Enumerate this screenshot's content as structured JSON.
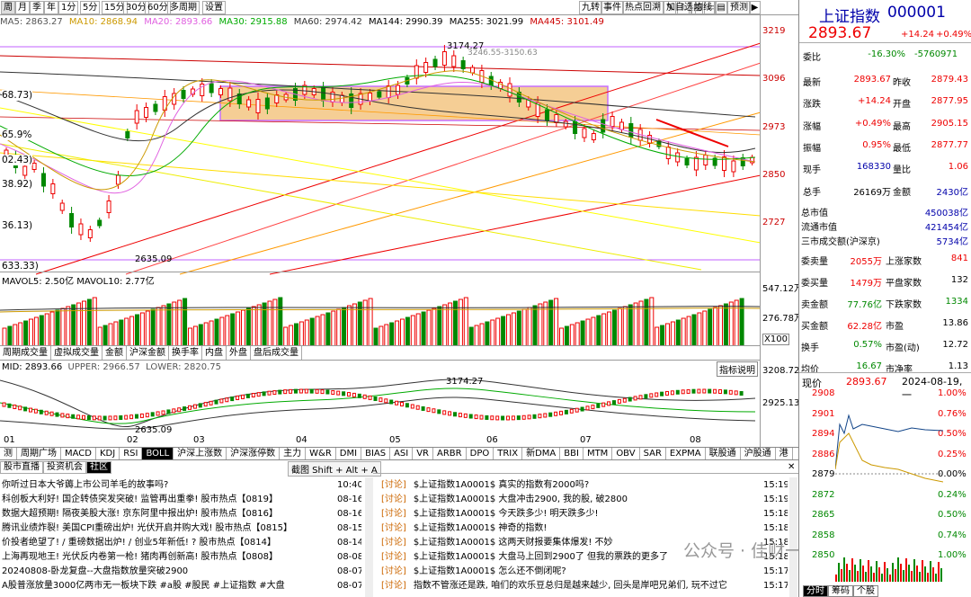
{
  "toolbar": {
    "periods": [
      "周",
      "月",
      "季",
      "年",
      "1分",
      "5分",
      "15分",
      "30分",
      "60分",
      "多周期",
      "设置"
    ],
    "active": "周",
    "right": [
      "九转",
      "事件",
      "热点回溯",
      "",
      "",
      "",
      "",
      "",
      "加自选",
      "均线",
      "",
      "预测",
      ""
    ]
  },
  "ma": {
    "ma5": "MA5: 2863.27",
    "ma10": "MA10: 2868.94",
    "ma20": "MA20: 2893.66",
    "ma30": "MA30: 2915.88",
    "ma60": "MA60: 2974.42",
    "ma144": "MA144: 2990.39",
    "ma255": "MA255: 3021.99",
    "ma445": "MA445: 3101.49"
  },
  "colors": {
    "ma5": "#555",
    "ma10": "#d4a300",
    "ma20": "#e060e0",
    "ma30": "#00a000",
    "ma60": "#333",
    "ma144": "#1a5",
    "ma255": "#333",
    "ma445": "#c00"
  },
  "price_axis": [
    "3219",
    "3096",
    "2973",
    "2850",
    "2727"
  ],
  "left_labels": [
    "68.73)",
    "65.9%",
    "02.43)",
    "38.92)",
    "36.13)",
    "633.33)"
  ],
  "annot": {
    "high": "3174.27",
    "low": "2635.09",
    "mid": "3246.55-3150.63"
  },
  "vol": {
    "header": "MAVOL5: 2.50亿  MAVOL10: 2.77亿",
    "max": "547.12万",
    "mid": "276.78万",
    "unit": "X100"
  },
  "tabs1": [
    "周期成交量",
    "虚拟成交量",
    "金额",
    "沪深金额",
    "换手率",
    "内盘",
    "外盘",
    "盘后成交量"
  ],
  "boll": {
    "mid": "MID: 2893.66",
    "upper": "UPPER: 2966.57",
    "lower": "LOWER: 2820.75",
    "btn": "指标说明",
    "top": "3208.72",
    "mid_val": "2925.13",
    "high": "3174.27",
    "low": "2635.09"
  },
  "x_labels": [
    "01",
    "02",
    "03",
    "04",
    "05",
    "06",
    "07",
    "08"
  ],
  "itabs": [
    "测",
    "周期广场",
    "MACD",
    "KDJ",
    "RSI",
    "BOLL",
    "沪深上涨数",
    "沪深涨停数",
    "主力",
    "W&R",
    "DMI",
    "BIAS",
    "ASI",
    "VR",
    "ARBR",
    "DPO",
    "TRIX",
    "新DMA",
    "BBI",
    "MTM",
    "OBV",
    "SAR",
    "EXPMA",
    "联股通",
    "沪股通",
    "港"
  ],
  "itab_active": "BOLL",
  "news_tabs": [
    "股市直播",
    "投资机会",
    "社区"
  ],
  "news_active": "社区",
  "screenshot_hint": "截图 Shift + Alt + A",
  "news": [
    {
      "t": "你听过日本大爷薅上市公司羊毛的故事吗?",
      "d": "10:40"
    },
    {
      "t": "科创板大利好! 国企转债突发突破! 监管再出重拳! 股市热点【0819】",
      "d": "08-16"
    },
    {
      "t": "数据大超预期! 隔夜美股大涨! 京东阿里中报出炉! 股市热点【0816】",
      "d": "08-16"
    },
    {
      "t": "腾讯业绩炸裂! 美国CPI重磅出炉! 光伏开启并购大戏! 股市热点【0815】",
      "d": "08-15"
    },
    {
      "t": "价投者绝望了! / 重磅数据出炉! / 创业5年新低! ? 股市热点【0814】",
      "d": "08-14"
    },
    {
      "t": "上海再现地王! 光伏反内卷第一枪! 猪肉再创新高! 股市热点【0808】",
      "d": "08-08"
    },
    {
      "t": "20240808-卧龙复盘--大盘指数放量突破2900",
      "d": "08-07"
    },
    {
      "t": "A股普涨放量3000亿两市无一板块下跌 #a股 #股民 #上证指数 #大盘",
      "d": "08-07"
    }
  ],
  "discuss": [
    {
      "tag": "讨论",
      "t": "$上证指数1A0001$ 真实的指数有2000吗?",
      "d": "15:19"
    },
    {
      "tag": "讨论",
      "t": "$上证指数1A0001$ 大盘冲击2900, 我的股, 破2800",
      "d": "15:19"
    },
    {
      "tag": "讨论",
      "t": "$上证指数1A0001$ 今天跌多少! 明天跌多少!",
      "d": "15:18"
    },
    {
      "tag": "讨论",
      "t": "$上证指数1A0001$ 神奇的指数!",
      "d": "15:18"
    },
    {
      "tag": "讨论",
      "t": "$上证指数1A0001$ 这两天财报要集体爆发! 不妙",
      "d": "15:18"
    },
    {
      "tag": "讨论",
      "t": "$上证指数1A0001$ 大盘马上回到2900了 但我的票跌的更多了",
      "d": "15:18"
    },
    {
      "tag": "讨论",
      "t": "$上证指数1A0001$ 怎么还不倒闭呢?",
      "d": "15:17"
    },
    {
      "tag": "讨论",
      "t": "指数不管涨还是跌, 咱们的欢乐豆总归是越来越少, 回头是岸吧兄弟们, 玩不过它",
      "d": "15:17"
    }
  ],
  "watermark": "公众号 · 佳财一分钟",
  "quote": {
    "name": "上证指数",
    "code": "000001",
    "price": "2893.67",
    "chg": "+14.24",
    "pct": "+0.49%"
  },
  "stats": [
    [
      "委比",
      "-16.30%",
      "",
      "-5760971"
    ],
    [
      "最新",
      "2893.67",
      "昨收",
      "2879.43"
    ],
    [
      "涨跌",
      "+14.24",
      "开盘",
      "2877.95"
    ],
    [
      "涨幅",
      "+0.49%",
      "最高",
      "2905.15"
    ],
    [
      "振幅",
      "0.95%",
      "最低",
      "2877.77"
    ],
    [
      "现手",
      "168330",
      "量比",
      "1.06"
    ],
    [
      "总手",
      "26169万",
      "金额",
      "2430亿"
    ]
  ],
  "mkt": [
    [
      "总市值",
      "450038亿"
    ],
    [
      "流通市值",
      "421454亿"
    ],
    [
      "三市成交额(沪深京)",
      "5734亿"
    ]
  ],
  "breadth": [
    [
      "委卖量",
      "2055万",
      "上涨家数",
      "841"
    ],
    [
      "委买量",
      "1479万",
      "平盘家数",
      "132"
    ],
    [
      "卖金额",
      "77.76亿",
      "下跌家数",
      "1334"
    ],
    [
      "买金额",
      "62.28亿",
      "市盈",
      "13.86"
    ],
    [
      "换手",
      "0.57%",
      "市盈(动)",
      "12.72"
    ],
    [
      "均价",
      "16.67",
      "市净率",
      "1.13"
    ]
  ],
  "intraday": {
    "label": "现价",
    "price": "2893.67",
    "date": "2024-08-19,一",
    "left": [
      "2908",
      "2901",
      "2894",
      "2886",
      "2879",
      "2872",
      "2865",
      "2858",
      "2850"
    ],
    "right": [
      "1.00%",
      "0.76%",
      "0.50%",
      "0.25%",
      "0.00%",
      "0.24%",
      "0.50%",
      "0.74%",
      "1.00%"
    ],
    "tabs": [
      "分时",
      "筹码",
      "个股"
    ]
  }
}
